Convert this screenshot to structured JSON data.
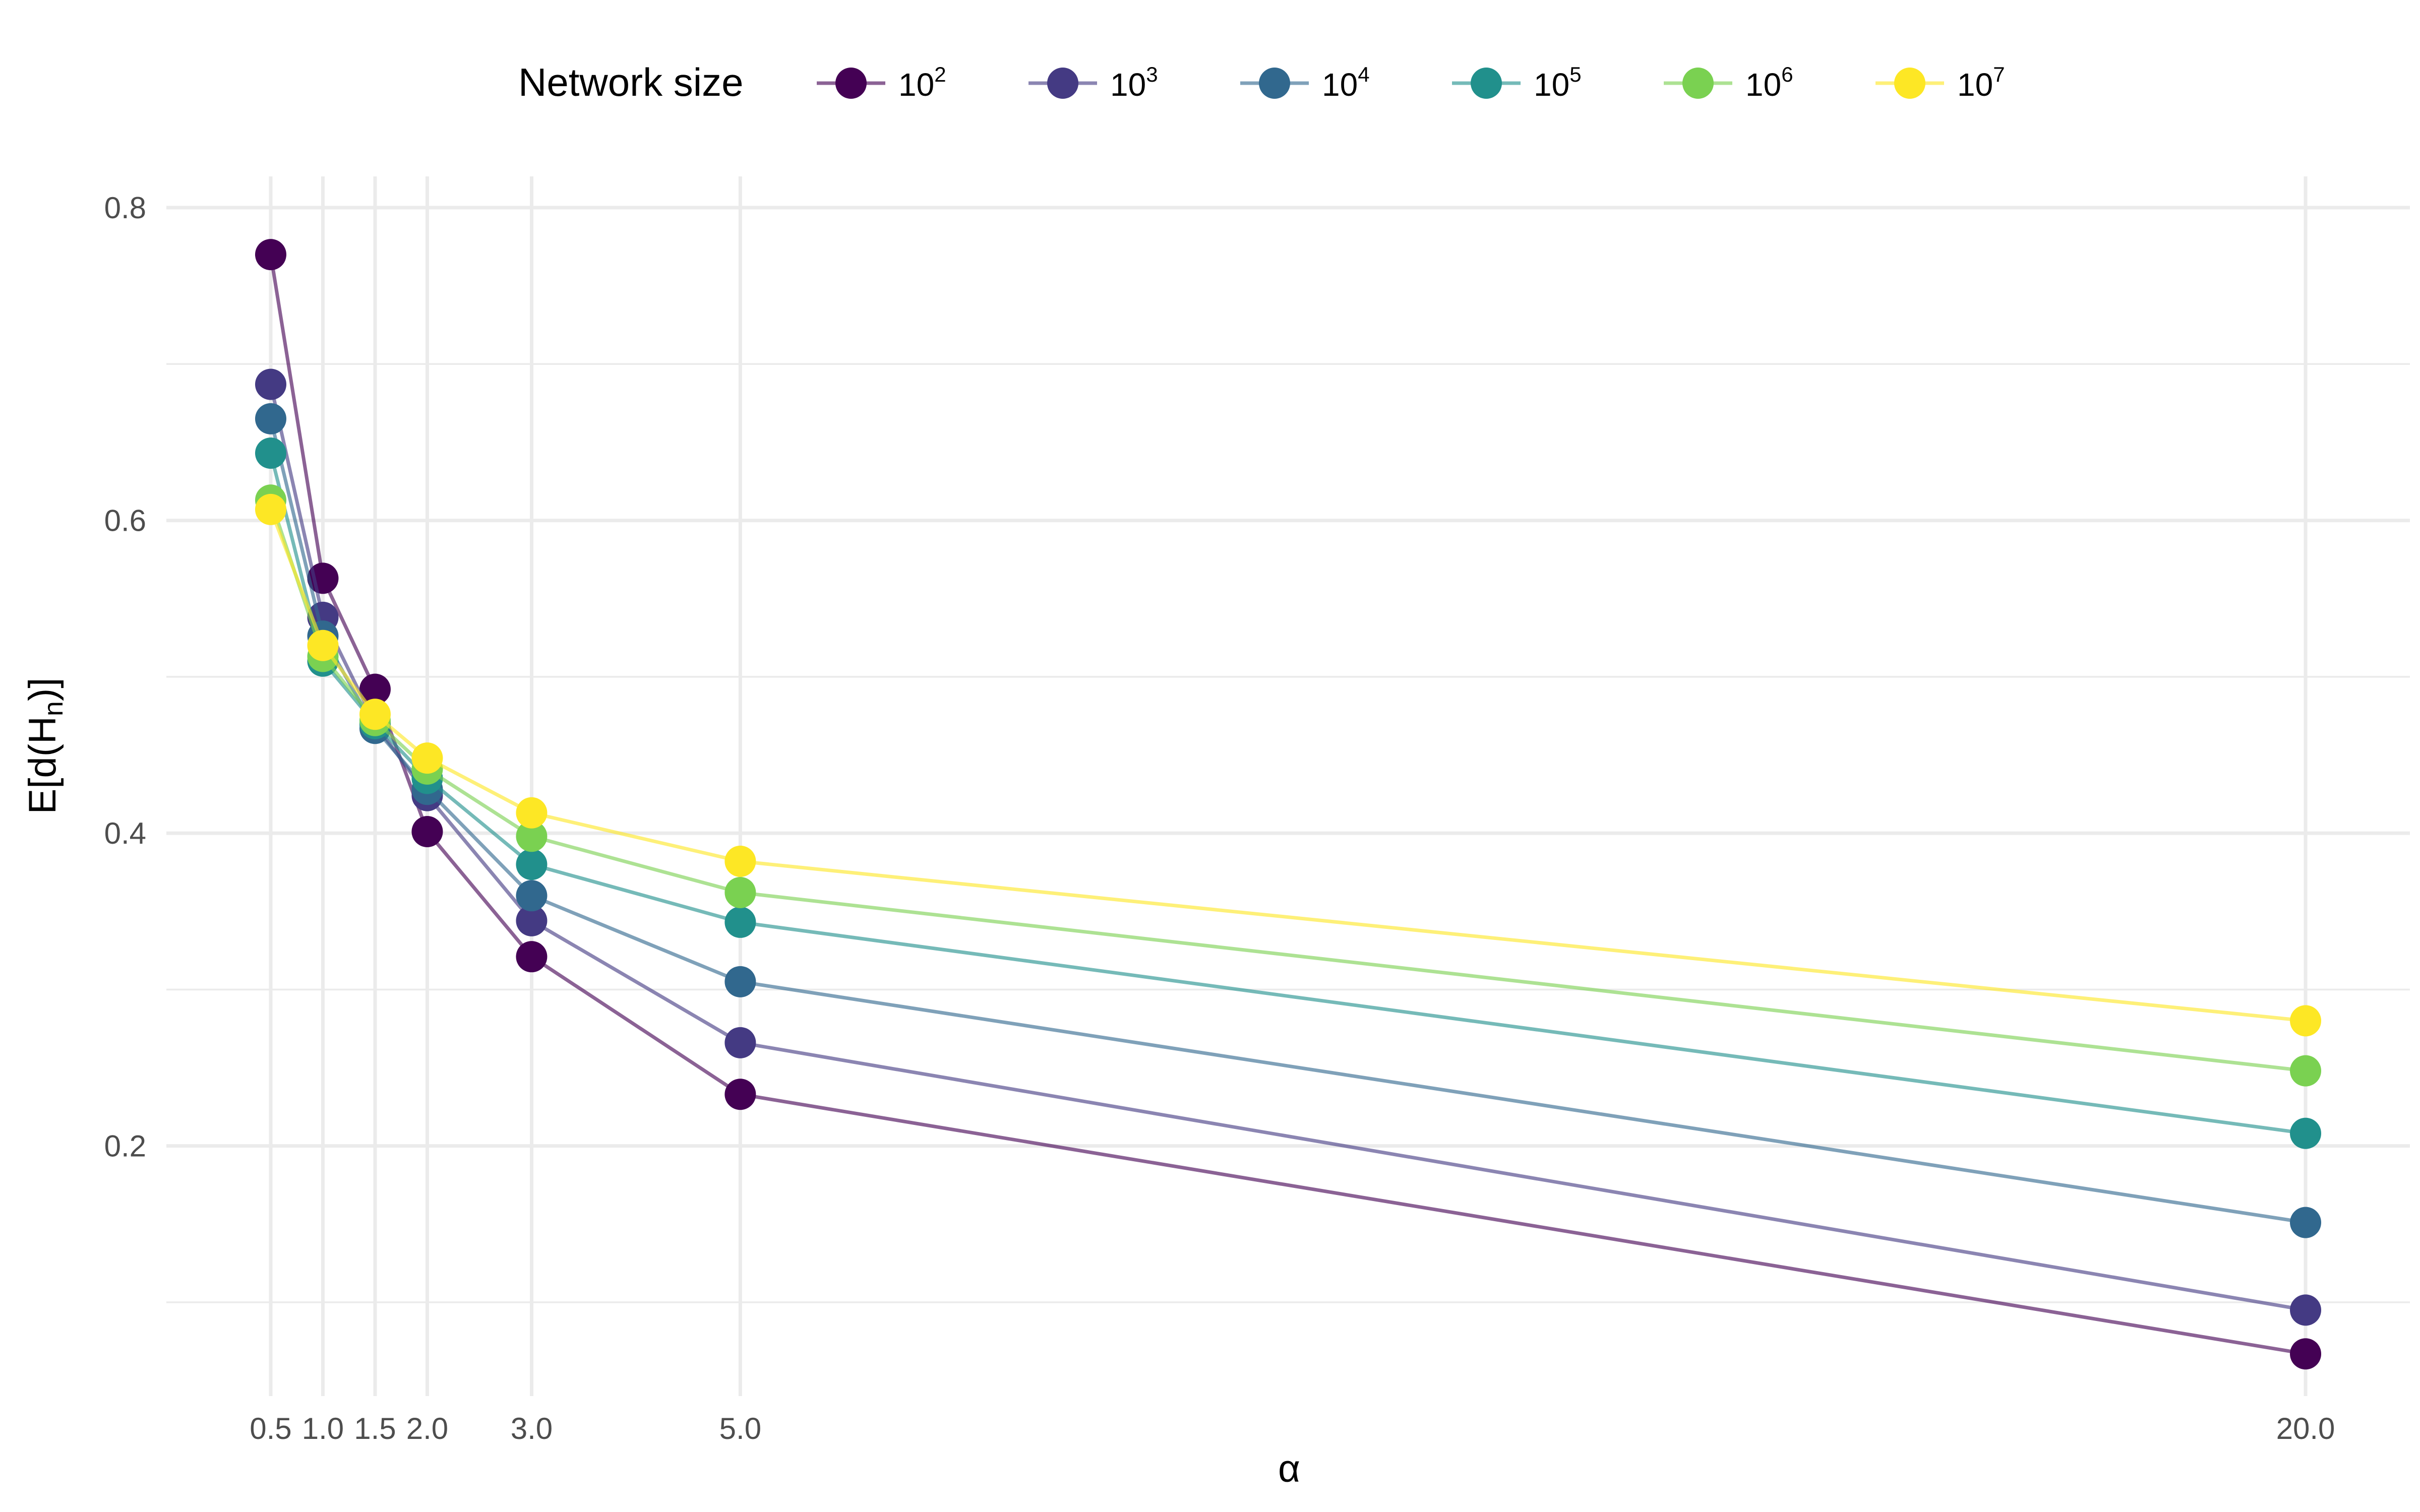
{
  "chart_data": {
    "type": "line",
    "title": "",
    "xlabel": "α",
    "ylabel": "E[d(H",
    "ylabel_sub": "n",
    "ylabel_end": ")]",
    "x": [
      0.5,
      1.0,
      1.5,
      2.0,
      3.0,
      5.0,
      20.0
    ],
    "x_tick_labels": [
      "0.5",
      "1.0",
      "1.5",
      "2.0",
      "3.0",
      "5.0",
      "20.0"
    ],
    "xlim": [
      -0.5,
      21.0
    ],
    "ylim": [
      0.04,
      0.82
    ],
    "y_ticks": [
      0.2,
      0.4,
      0.6,
      0.8
    ],
    "y_tick_labels": [
      "0.2",
      "0.4",
      "0.6",
      "0.8"
    ],
    "y_minor_ticks": [
      0.1,
      0.3,
      0.5,
      0.7
    ],
    "grid": true,
    "legend": {
      "title": "Network size",
      "position": "top",
      "base": "10"
    },
    "series": [
      {
        "name": "10^2",
        "exponent": "2",
        "color": "#440154",
        "values": [
          0.77,
          0.563,
          0.492,
          0.401,
          0.321,
          0.233,
          0.067
        ]
      },
      {
        "name": "10^3",
        "exponent": "3",
        "color": "#443A83",
        "values": [
          0.687,
          0.538,
          0.47,
          0.424,
          0.344,
          0.266,
          0.095
        ]
      },
      {
        "name": "10^4",
        "exponent": "4",
        "color": "#31688E",
        "values": [
          0.665,
          0.526,
          0.467,
          0.428,
          0.36,
          0.305,
          0.151
        ]
      },
      {
        "name": "10^5",
        "exponent": "5",
        "color": "#21908C",
        "values": [
          0.643,
          0.51,
          0.47,
          0.435,
          0.38,
          0.343,
          0.208
        ]
      },
      {
        "name": "10^6",
        "exponent": "6",
        "color": "#7AD151",
        "values": [
          0.613,
          0.513,
          0.472,
          0.441,
          0.398,
          0.362,
          0.248
        ]
      },
      {
        "name": "10^7",
        "exponent": "7",
        "color": "#FDE725",
        "values": [
          0.607,
          0.52,
          0.476,
          0.448,
          0.413,
          0.382,
          0.28
        ]
      }
    ]
  }
}
